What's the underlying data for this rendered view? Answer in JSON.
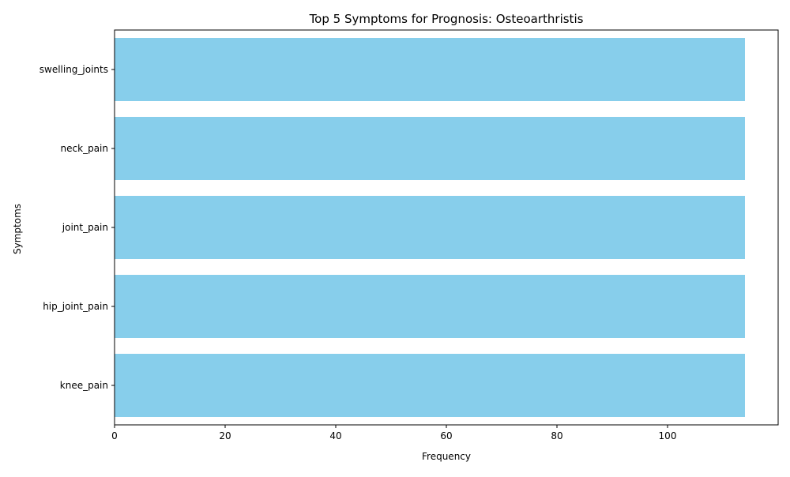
{
  "chart_data": {
    "type": "bar",
    "orientation": "horizontal",
    "title": "Top 5 Symptoms for Prognosis: Osteoarthristis",
    "xlabel": "Frequency",
    "ylabel": "Symptoms",
    "categories": [
      "swelling_joints",
      "neck_pain",
      "joint_pain",
      "hip_joint_pain",
      "knee_pain"
    ],
    "values": [
      114,
      114,
      114,
      114,
      114
    ],
    "xlim": [
      0,
      120
    ],
    "xticks": [
      0,
      20,
      40,
      60,
      80,
      100
    ],
    "grid": false,
    "legend": "none",
    "bar_color": "#87CEEB"
  }
}
